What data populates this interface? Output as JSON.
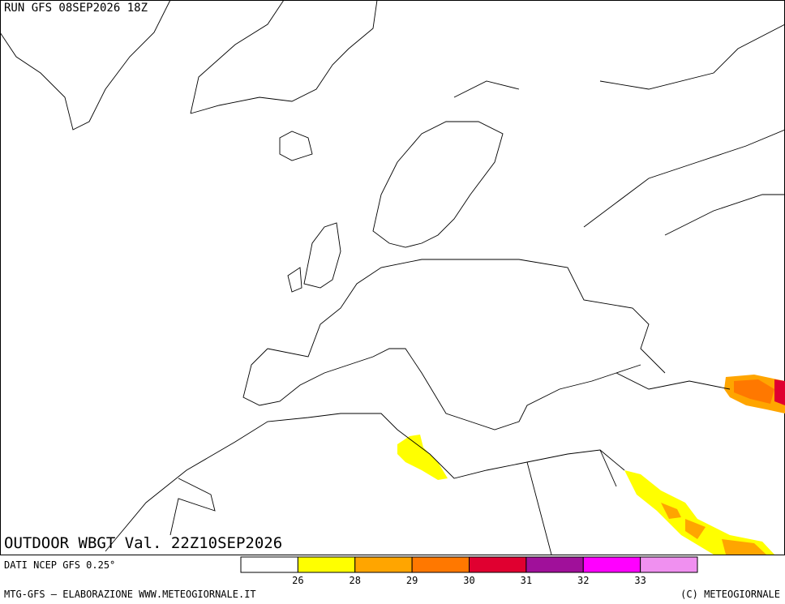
{
  "header": {
    "run": "RUN GFS 08SEP2026 18Z",
    "title": "OUTDOOR WBGT Val. 22Z10SEP2026"
  },
  "source": "DATI NCEP GFS 0.25°",
  "legend": {
    "colors": [
      "#ffffff",
      "#ffff00",
      "#ffa500",
      "#ff7800",
      "#e00030",
      "#a0109a",
      "#ff00ff",
      "#f090f0"
    ],
    "labels": [
      26,
      28,
      29,
      30,
      31,
      32,
      33
    ]
  },
  "footer": {
    "left": "MTG-GFS — ELABORAZIONE WWW.METEOGIORNALE.IT",
    "right": "(C) METEOGIORNALE"
  }
}
